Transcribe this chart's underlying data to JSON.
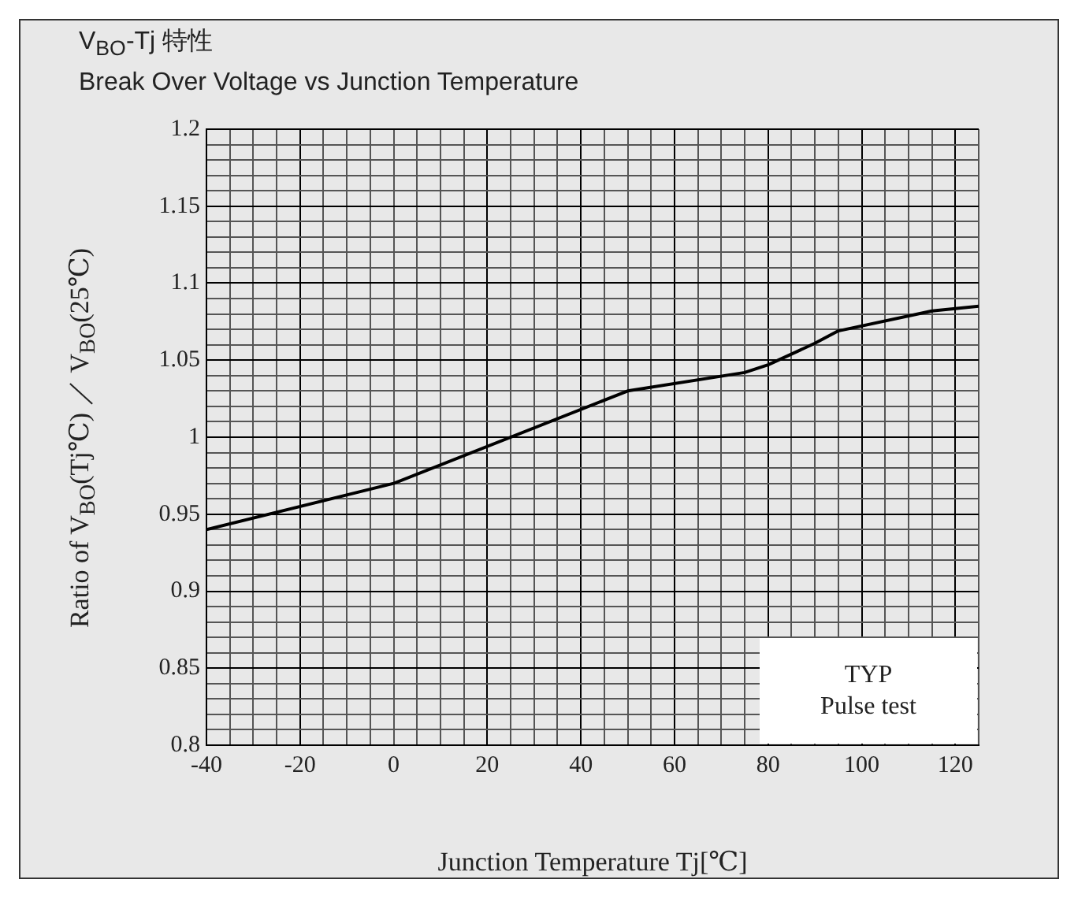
{
  "chart_data": {
    "type": "line",
    "title": "V$_{BO}$-Tj 特性",
    "subtitle": "Break Over Voltage vs Junction Temperature",
    "xlabel": "Junction Temperature Tj[℃]",
    "ylabel": "Ratio of V$_{BO}$(Tj℃) ／ V$_{BO}$(25℃)",
    "x": [
      -40,
      0,
      50,
      75,
      80,
      90,
      95,
      115,
      125
    ],
    "series": [
      {
        "color": "#000000",
        "values": [
          0.94,
          0.97,
          1.03,
          1.042,
          1.047,
          1.061,
          1.069,
          1.082,
          1.085
        ]
      }
    ],
    "xlim": [
      -40,
      125
    ],
    "xticks": [
      -40,
      {
        "value": -35,
        "label": null
      },
      {
        "value": -30,
        "label": null
      },
      {
        "value": -25,
        "label": null
      },
      -20,
      {
        "value": -15,
        "label": null
      },
      {
        "value": -10,
        "label": null
      },
      {
        "value": -5,
        "label": null
      },
      0,
      {
        "value": 5,
        "label": null
      },
      {
        "value": 10,
        "label": null
      },
      {
        "value": 15,
        "label": null
      },
      20,
      {
        "value": 25,
        "label": null
      },
      {
        "value": 30,
        "label": null
      },
      {
        "value": 35,
        "label": null
      },
      40,
      {
        "value": 45,
        "label": null
      },
      {
        "value": 50,
        "label": null
      },
      {
        "value": 55,
        "label": null
      },
      60,
      {
        "value": 65,
        "label": null
      },
      {
        "value": 70,
        "label": null
      },
      {
        "value": 75,
        "label": null
      },
      80,
      {
        "value": 85,
        "label": null
      },
      {
        "value": 90,
        "label": null
      },
      {
        "value": 95,
        "label": null
      },
      100,
      {
        "value": 105,
        "label": null
      },
      {
        "value": 110,
        "label": null
      },
      {
        "value": 115,
        "label": null
      },
      120,
      {
        "value": 125,
        "label": null
      }
    ],
    "ylim": [
      0.8,
      1.2
    ],
    "yticks": [
      0.8,
      {
        "value": 0.81,
        "label": null
      },
      {
        "value": 0.82,
        "label": null
      },
      {
        "value": 0.83,
        "label": null
      },
      {
        "value": 0.84,
        "label": null
      },
      0.85,
      {
        "value": 0.86,
        "label": null
      },
      {
        "value": 0.87,
        "label": null
      },
      {
        "value": 0.88,
        "label": null
      },
      {
        "value": 0.89,
        "label": null
      },
      0.9,
      {
        "value": 0.91,
        "label": null
      },
      {
        "value": 0.92,
        "label": null
      },
      {
        "value": 0.93,
        "label": null
      },
      {
        "value": 0.94,
        "label": null
      },
      0.95,
      {
        "value": 0.96,
        "label": null
      },
      {
        "value": 0.97,
        "label": null
      },
      {
        "value": 0.98,
        "label": null
      },
      {
        "value": 0.99,
        "label": null
      },
      1,
      {
        "value": 1.01,
        "label": null
      },
      {
        "value": 1.02,
        "label": null
      },
      {
        "value": 1.03,
        "label": null
      },
      {
        "value": 1.04,
        "label": null
      },
      1.05,
      {
        "value": 1.06,
        "label": null
      },
      {
        "value": 1.07,
        "label": null
      },
      {
        "value": 1.08,
        "label": null
      },
      {
        "value": 1.09,
        "label": null
      },
      1.1,
      {
        "value": 1.11,
        "label": null
      },
      {
        "value": 1.12,
        "label": null
      },
      {
        "value": 1.13,
        "label": null
      },
      {
        "value": 1.14,
        "label": null
      },
      1.15,
      {
        "value": 1.16,
        "label": null
      },
      {
        "value": 1.17,
        "label": null
      },
      {
        "value": 1.18,
        "label": null
      },
      {
        "value": 1.19,
        "label": null
      },
      1.2
    ],
    "grid": true,
    "legend": false,
    "marker": "none",
    "line_style": "solid",
    "annotations": [
      "TYP",
      "Pulse test"
    ]
  }
}
